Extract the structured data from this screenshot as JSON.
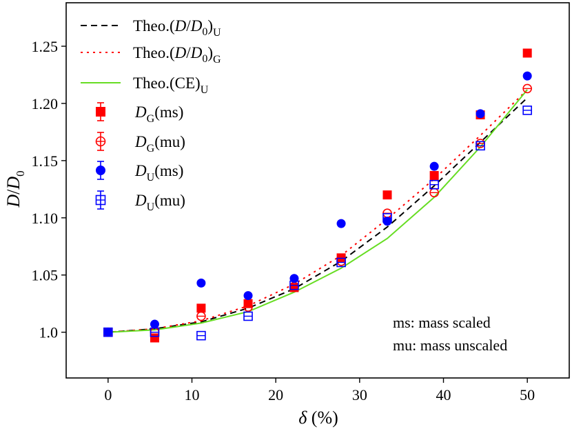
{
  "chart_data": {
    "type": "scatter",
    "xlabel": "δ (%)",
    "ylabel": "D/D0",
    "xlim": [
      -5,
      55
    ],
    "ylim": [
      0.96,
      1.288
    ],
    "xticks": [
      0,
      10,
      20,
      30,
      40,
      50
    ],
    "xtick_labels": [
      "0",
      "10",
      "20",
      "30",
      "40",
      "50"
    ],
    "yticks": [
      1.0,
      1.05,
      1.1,
      1.15,
      1.2,
      1.25
    ],
    "ytick_labels": [
      "1.0",
      "1.05",
      "1.10",
      "1.15",
      "1.20",
      "1.25"
    ],
    "grid": false,
    "legend_position": "top-left",
    "lines": [
      {
        "name": "Theo.(D/D0)U",
        "color": "#000000",
        "style": "dashed",
        "x": [
          0,
          5.56,
          11.1,
          16.7,
          22.2,
          27.8,
          33.3,
          38.9,
          44.4,
          50
        ],
        "y": [
          1.0,
          1.003,
          1.009,
          1.021,
          1.038,
          1.062,
          1.092,
          1.128,
          1.166,
          1.205
        ]
      },
      {
        "name": "Theo.(D/D0)G",
        "color": "#ff0000",
        "style": "dotted",
        "x": [
          0,
          5.56,
          11.1,
          16.7,
          22.2,
          27.8,
          33.3,
          38.9,
          44.4,
          50
        ],
        "y": [
          1.0,
          1.003,
          1.01,
          1.023,
          1.042,
          1.067,
          1.099,
          1.134,
          1.172,
          1.212
        ]
      },
      {
        "name": "Theo.(CE)U",
        "color": "#66dd22",
        "style": "solid",
        "x": [
          0,
          5.56,
          11.1,
          16.7,
          22.2,
          27.8,
          33.3,
          38.9,
          44.4,
          50
        ],
        "y": [
          1.0,
          1.002,
          1.008,
          1.018,
          1.035,
          1.056,
          1.082,
          1.118,
          1.162,
          1.212
        ]
      }
    ],
    "markers": [
      {
        "name": "DG(ms)",
        "color": "#ff0000",
        "marker": "square",
        "filled": true,
        "x": [
          0,
          5.56,
          11.1,
          16.7,
          22.2,
          27.8,
          33.3,
          38.9,
          44.4,
          50
        ],
        "y": [
          1.0,
          0.995,
          1.021,
          1.025,
          1.039,
          1.065,
          1.12,
          1.137,
          1.19,
          1.244
        ]
      },
      {
        "name": "DG(mu)",
        "color": "#ff0000",
        "marker": "circle",
        "filled": false,
        "x": [
          0,
          5.56,
          11.1,
          16.7,
          22.2,
          27.8,
          33.3,
          38.9,
          44.4,
          50
        ],
        "y": [
          1.0,
          1.0,
          1.014,
          1.022,
          1.04,
          1.062,
          1.104,
          1.122,
          1.165,
          1.213
        ]
      },
      {
        "name": "DU(ms)",
        "color": "#0000ff",
        "marker": "circle",
        "filled": true,
        "x": [
          0,
          5.56,
          11.1,
          16.7,
          22.2,
          27.8,
          33.3,
          38.9,
          44.4,
          50
        ],
        "y": [
          1.0,
          1.007,
          1.043,
          1.032,
          1.047,
          1.095,
          1.097,
          1.145,
          1.191,
          1.224
        ]
      },
      {
        "name": "DU(mu)",
        "color": "#0000ff",
        "marker": "square",
        "filled": false,
        "x": [
          0,
          5.56,
          11.1,
          16.7,
          22.2,
          27.8,
          33.3,
          38.9,
          44.4,
          50
        ],
        "y": [
          1.0,
          1.0,
          0.997,
          1.014,
          1.041,
          1.061,
          1.1,
          1.129,
          1.163,
          1.194
        ]
      }
    ],
    "legend": [
      {
        "main": "Theo.(D/D",
        "sub0": "0",
        "close": ")",
        "sub": "U",
        "kind": "line",
        "series": 0
      },
      {
        "main": "Theo.(D/D",
        "sub0": "0",
        "close": ")",
        "sub": "G",
        "kind": "line",
        "series": 1
      },
      {
        "main": "Theo.(CE)",
        "sub0": "",
        "close": "",
        "sub": "U",
        "kind": "line",
        "series": 2
      },
      {
        "main": "D",
        "sub": "G",
        "tail": "(ms)",
        "kind": "marker",
        "series": 0
      },
      {
        "main": "D",
        "sub": "G",
        "tail": "(mu)",
        "kind": "marker",
        "series": 1
      },
      {
        "main": "D",
        "sub": "U",
        "tail": "(ms)",
        "kind": "marker",
        "series": 2
      },
      {
        "main": "D",
        "sub": "U",
        "tail": "(mu)",
        "kind": "marker",
        "series": 3
      }
    ],
    "annotations": [
      "ms: mass scaled",
      "mu: mass unscaled"
    ]
  }
}
